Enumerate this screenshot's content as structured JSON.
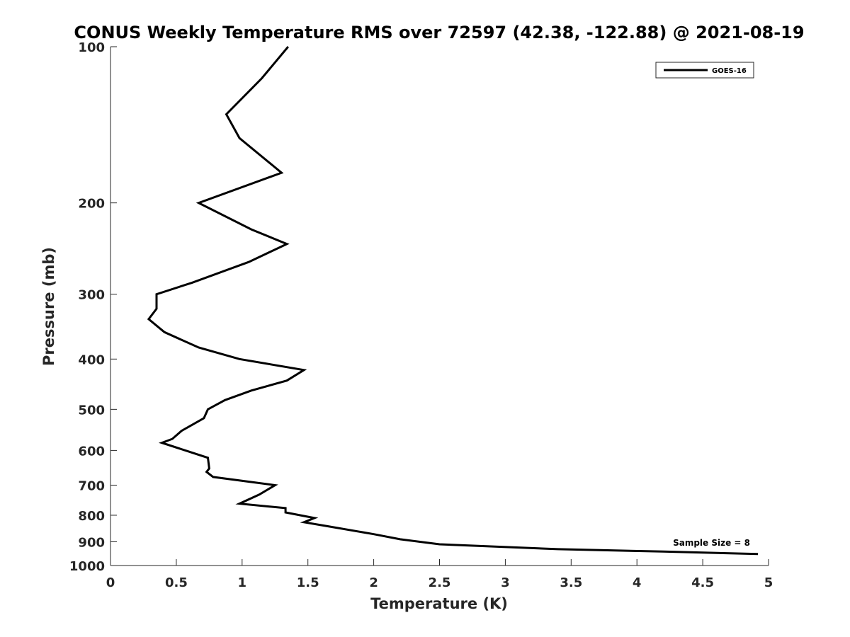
{
  "chart_data": {
    "type": "line",
    "title": "CONUS Weekly Temperature RMS over 72597 (42.38, -122.88) @ 2021-08-19",
    "xlabel": "Temperature (K)",
    "ylabel": "Pressure (mb)",
    "xlim": [
      0,
      5
    ],
    "ylim": [
      1000,
      100
    ],
    "yscale": "log",
    "xticks": [
      "0",
      "0.5",
      "1",
      "1.5",
      "2",
      "2.5",
      "3",
      "3.5",
      "4",
      "4.5",
      "5"
    ],
    "yticks": [
      "100",
      "200",
      "300",
      "400",
      "500",
      "600",
      "700",
      "800",
      "900",
      "1000"
    ],
    "grid": false,
    "legend_position": "top-right",
    "annotation": "Sample Size = 8",
    "series": [
      {
        "name": "GOES-16",
        "color": "#000000",
        "points": [
          [
            1.35,
            100
          ],
          [
            1.15,
            115
          ],
          [
            0.88,
            135
          ],
          [
            0.98,
            150
          ],
          [
            1.3,
            175
          ],
          [
            0.67,
            200
          ],
          [
            1.07,
            225
          ],
          [
            1.34,
            240
          ],
          [
            1.05,
            260
          ],
          [
            0.62,
            285
          ],
          [
            0.35,
            300
          ],
          [
            0.35,
            320
          ],
          [
            0.29,
            335
          ],
          [
            0.41,
            355
          ],
          [
            0.67,
            380
          ],
          [
            0.98,
            400
          ],
          [
            1.47,
            420
          ],
          [
            1.34,
            440
          ],
          [
            1.07,
            460
          ],
          [
            0.87,
            480
          ],
          [
            0.74,
            500
          ],
          [
            0.71,
            520
          ],
          [
            0.54,
            550
          ],
          [
            0.47,
            570
          ],
          [
            0.39,
            580
          ],
          [
            0.74,
            620
          ],
          [
            0.75,
            650
          ],
          [
            0.73,
            660
          ],
          [
            0.78,
            675
          ],
          [
            1.25,
            700
          ],
          [
            1.13,
            730
          ],
          [
            0.98,
            760
          ],
          [
            1.33,
            775
          ],
          [
            1.33,
            790
          ],
          [
            1.55,
            810
          ],
          [
            1.47,
            825
          ],
          [
            1.65,
            840
          ],
          [
            2.0,
            870
          ],
          [
            2.2,
            890
          ],
          [
            2.5,
            910
          ],
          [
            3.4,
            930
          ],
          [
            4.2,
            940
          ],
          [
            4.92,
            950
          ]
        ]
      }
    ]
  }
}
